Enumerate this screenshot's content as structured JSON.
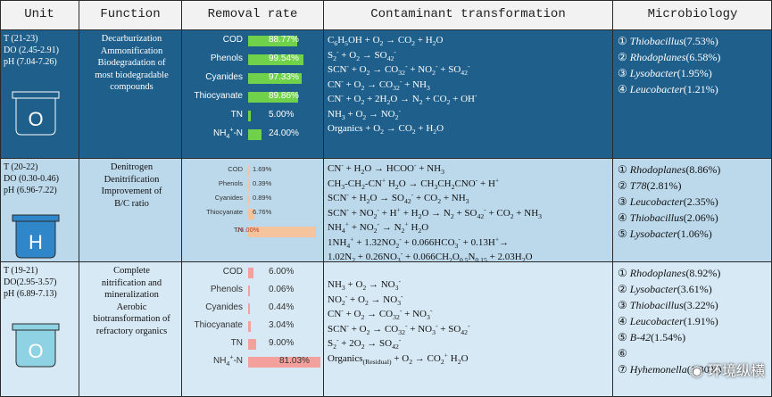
{
  "headers": {
    "unit": "Unit",
    "function": "Function",
    "removal_rate": "Removal rate",
    "transformation": "Contaminant transformation",
    "microbiology": "Microbiology"
  },
  "units": [
    {
      "letter": "O",
      "conditions": [
        "T (21-23)",
        "DO (2.45-2.91)",
        "pH (7.04-7.26)"
      ],
      "functions": [
        "Decarburization",
        "Ammonification",
        "Biodegradation of",
        "most biodegradable",
        "compounds"
      ],
      "bar_color": "#6fd24a",
      "removal": [
        {
          "label": "COD",
          "value": "88.77%",
          "pct": 88.77
        },
        {
          "label": "Phenols",
          "value": "99.54%",
          "pct": 99.54
        },
        {
          "label": "Cyanides",
          "value": "97.33%",
          "pct": 97.33
        },
        {
          "label": "Thiocyanate",
          "value": "89.86%",
          "pct": 89.86
        },
        {
          "label": "TN",
          "value": "5.00%",
          "pct": 5.0
        },
        {
          "label": "NH4+-N",
          "value": "24.00%",
          "pct": 24.0
        }
      ],
      "transformations": [
        "C6H5OH + O2 → CO2 + H2O",
        "S2- + O2 → SO42-",
        "SCN- + O2 → CO32- + NO2- + SO42-",
        "CN- + O2 → CO32- + NH3",
        "CN- + O2 + 2H2O → N2 + CO2 + OH-",
        "NH3 + O2 → NO2-",
        "Organics + O2 → CO2 + H2O"
      ],
      "microbes": [
        {
          "num": "①",
          "name": "Thiobacillus",
          "pct": "(7.53%)"
        },
        {
          "num": "②",
          "name": "Rhodoplanes",
          "pct": "(6.58%)"
        },
        {
          "num": "③",
          "name": "Lysobacter",
          "pct": "(1.95%)"
        },
        {
          "num": "④",
          "name": "Leucobacter",
          "pct": "(1.21%)"
        }
      ]
    },
    {
      "letter": "H",
      "conditions": [
        "T (20-22)",
        "DO (0.30-0.46)",
        "pH (6.96-7.22)"
      ],
      "functions": [
        "Denitrogen",
        "Denitrification",
        "Improvement of",
        "B/C ratio"
      ],
      "bar_color": "#f5c49c",
      "removal": [
        {
          "label": "COD",
          "value": "1.69%",
          "pct": 1.69
        },
        {
          "label": "Phenols",
          "value": "0.39%",
          "pct": 0.39
        },
        {
          "label": "Cyanides",
          "value": "0.89%",
          "pct": 0.89
        },
        {
          "label": "Thiocyanate",
          "value": "6.76%",
          "pct": 6.76
        },
        {
          "label": "TN",
          "value": "76.00%",
          "pct": 76.0
        }
      ],
      "transformations": [
        "CN- + H2O → HCOO- + NH3",
        "CH3-CH2-CN+ H2O → CH3CH2CNO- + H+",
        "SCN- + H2O → SO42- + CO2 + NH3",
        "SCN- + NO2- + H+ + H2O → N2 + SO42- + CO2 + NH3",
        "NH4+ + NO2- → N2+ H2O",
        "1NH4+ + 1.32NO2- + 0.066HCO3- + 0.13H+→",
        "1.02N2 + 0.26NO3- + 0.066CH2O0.5N0.15 + 2.03H2O"
      ],
      "microbes": [
        {
          "num": "①",
          "name": "Rhodoplanes",
          "pct": "(8.86%)"
        },
        {
          "num": "②",
          "name": "T78",
          "pct": "(2.81%)"
        },
        {
          "num": "③",
          "name": "Leucobacter",
          "pct": "(2.35%)"
        },
        {
          "num": "④",
          "name": "Thiobacillus",
          "pct": "(2.06%)"
        },
        {
          "num": "⑤",
          "name": "Lysobacter",
          "pct": "(1.06%)"
        }
      ]
    },
    {
      "letter": "O",
      "conditions": [
        "T (19-21)",
        "DO(2.95-3.57)",
        "pH (6.89-7.13)"
      ],
      "functions": [
        "Complete",
        "nitrification and",
        "mineralization",
        "Aerobic",
        "biotransformation of",
        "refractory organics"
      ],
      "bar_color": "#f4a09c",
      "removal": [
        {
          "label": "COD",
          "value": "6.00%",
          "pct": 6.0
        },
        {
          "label": "Phenols",
          "value": "0.06%",
          "pct": 0.06
        },
        {
          "label": "Cyanides",
          "value": "0.44%",
          "pct": 0.44
        },
        {
          "label": "Thiocyanate",
          "value": "3.04%",
          "pct": 3.04
        },
        {
          "label": "TN",
          "value": "9.00%",
          "pct": 9.0
        },
        {
          "label": "NH4+-N",
          "value": "81.03%",
          "pct": 81.03
        }
      ],
      "transformations": [
        "NH3 + O2 → NO3-",
        "NO2- + O2 → NO3-",
        "CN- + O2 → CO32- + NO3-",
        "SCN- + O2 → CO32- + NO3- + SO42-",
        "S2- + 2O2 → SO42-",
        "Organics(Residual) + O2 → CO2+ H2O"
      ],
      "microbes": [
        {
          "num": "①",
          "name": "Rhodoplanes",
          "pct": "(8.92%)"
        },
        {
          "num": "②",
          "name": "Lysobacter",
          "pct": "(3.61%)"
        },
        {
          "num": "③",
          "name": "Thiobacillus",
          "pct": "(3.22%)"
        },
        {
          "num": "④",
          "name": "Leucobacter",
          "pct": "(1.91%)"
        },
        {
          "num": "⑤",
          "name": "B-42",
          "pct": "(1.54%)"
        },
        {
          "num": "⑥",
          "name": "",
          "pct": ""
        },
        {
          "num": "⑦",
          "name": "Hyhemonella",
          "pct": "(1.30%)"
        }
      ]
    }
  ],
  "watermark": "环境纵横",
  "icons": {
    "tank": "tank-icon",
    "watermark": "wechat-icon"
  }
}
